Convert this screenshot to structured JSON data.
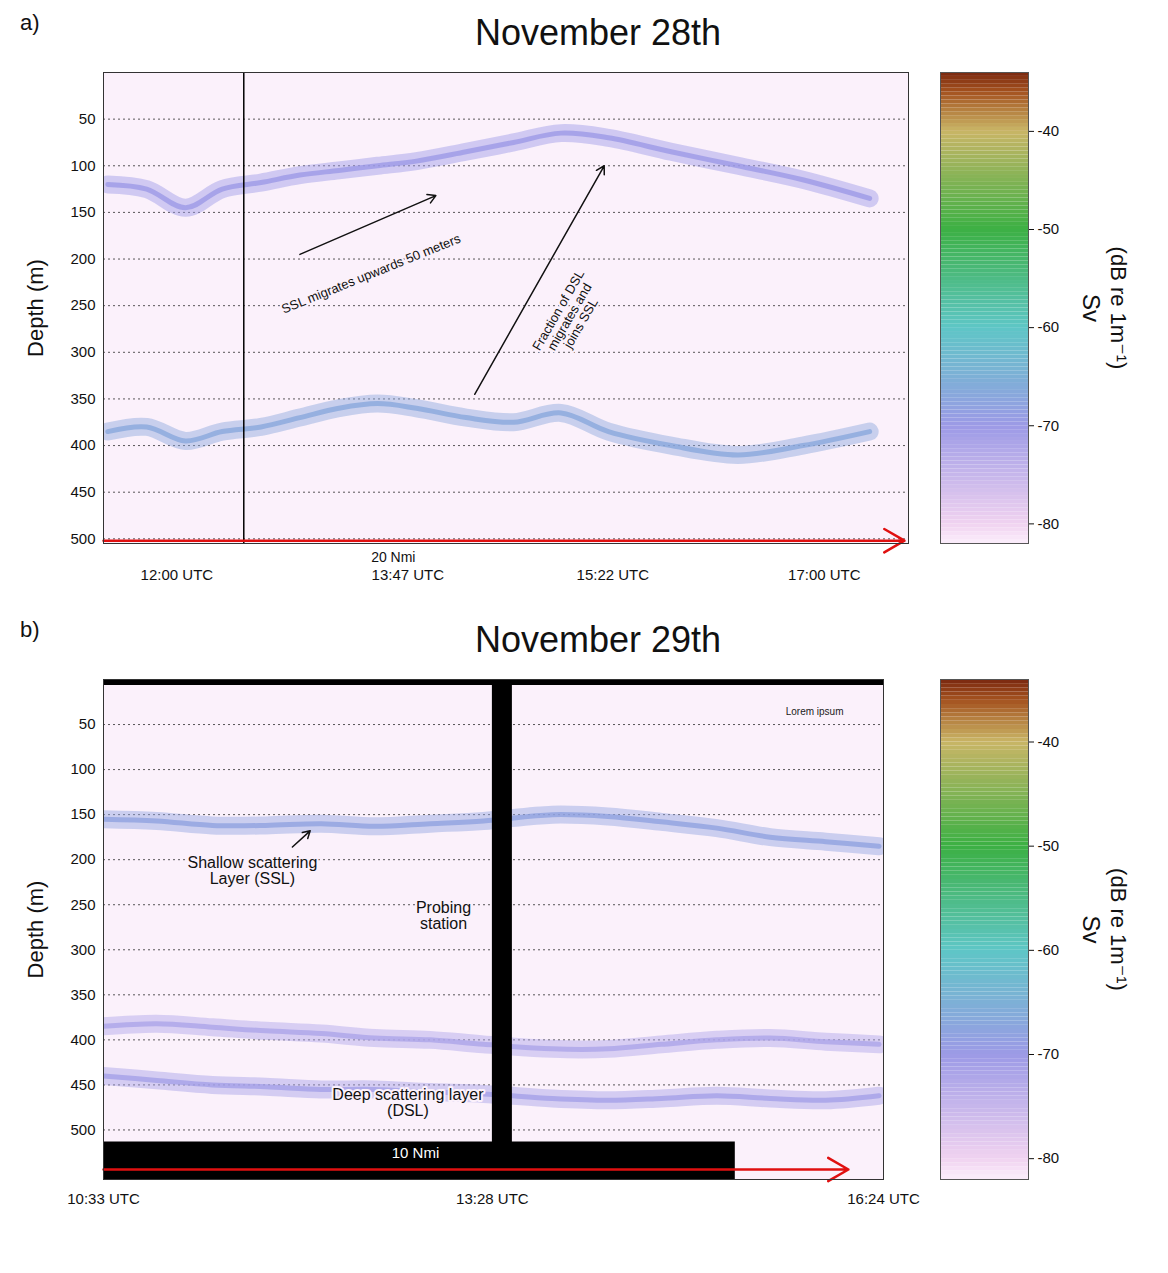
{
  "chart_data": [
    {
      "type": "echogram",
      "label": "a)",
      "title": "November 28th",
      "y_label": "Depth (m)",
      "ylim": [
        0,
        505
      ],
      "yticks": [
        50,
        100,
        150,
        200,
        250,
        300,
        350,
        400,
        450,
        500
      ],
      "grid": true,
      "xlim": [
        686,
        1059
      ],
      "xticks": [
        {
          "value": 720,
          "label": "12:00 UTC"
        },
        {
          "value": 827,
          "label": "13:47 UTC"
        },
        {
          "value": 922,
          "label": "15:22 UTC"
        },
        {
          "value": 1020,
          "label": "17:00 UTC"
        }
      ],
      "x": [
        688,
        706,
        724,
        741,
        759,
        777,
        795,
        813,
        831,
        854,
        876,
        898,
        920,
        949,
        980,
        1010,
        1041
      ],
      "series": [
        {
          "sv": -70,
          "values": [
            120,
            125,
            145,
            125,
            118,
            110,
            105,
            100,
            95,
            85,
            75,
            65,
            70,
            85,
            100,
            115,
            135
          ]
        },
        {
          "sv": -67,
          "values": [
            385,
            380,
            395,
            385,
            380,
            370,
            360,
            355,
            360,
            370,
            375,
            365,
            385,
            400,
            410,
            400,
            385
          ]
        }
      ],
      "events": [
        {
          "x": 751
        }
      ],
      "annotations": [
        "SSL migrates upwards 50 meters",
        "Fraction of DSL migrates and joins SSL"
      ],
      "scale_bar": "20 Nmi",
      "colorbar": {
        "label": "Sv",
        "units": "(dB re 1m⁻¹)",
        "range": [
          -82,
          -34
        ],
        "ticks": [
          -40,
          -50,
          -60,
          -70,
          -80
        ],
        "stops": [
          -82,
          -80,
          -70,
          -60,
          -50,
          -40,
          -36,
          -34
        ],
        "colors": [
          "#fbeefb",
          "#f0d2f0",
          "#9c9ae6",
          "#5ec6c6",
          "#3cb043",
          "#c9b566",
          "#a4521f",
          "#7a2810"
        ]
      }
    },
    {
      "type": "echogram",
      "label": "b)",
      "title": "November 29th",
      "y_label": "Depth (m)",
      "ylim": [
        0,
        555
      ],
      "yticks": [
        50,
        100,
        150,
        200,
        250,
        300,
        350,
        400,
        450,
        500
      ],
      "grid": true,
      "xlim": [
        633,
        984
      ],
      "xticks": [
        {
          "value": 633,
          "label": "10:33 UTC"
        },
        {
          "value": 808,
          "label": "13:28 UTC"
        },
        {
          "value": 984,
          "label": "16:24 UTC"
        }
      ],
      "x": [
        633,
        657,
        682,
        706,
        731,
        755,
        780,
        804,
        835,
        860,
        884,
        909,
        933,
        958,
        982
      ],
      "series": [
        {
          "sv": -68,
          "values": [
            155,
            157,
            162,
            162,
            160,
            163,
            160,
            157,
            150,
            152,
            158,
            165,
            175,
            180,
            185
          ]
        },
        {
          "sv": -72,
          "values": [
            385,
            382,
            386,
            390,
            393,
            398,
            400,
            405,
            410,
            410,
            405,
            400,
            398,
            402,
            405
          ]
        },
        {
          "sv": -71,
          "values": [
            440,
            445,
            450,
            452,
            455,
            455,
            458,
            460,
            465,
            467,
            465,
            462,
            465,
            467,
            462
          ]
        }
      ],
      "events": [
        {
          "x1": 808,
          "x2": 817
        }
      ],
      "annotations": [
        "Shallow scattering Layer (SSL)",
        "Probing station",
        "Deep scattering layer (DSL)",
        "Lorem ipsum"
      ],
      "scale_bar": "10 Nmi",
      "colorbar": {
        "label": "Sv",
        "units": "(dB re 1m⁻¹)",
        "range": [
          -82,
          -34
        ],
        "ticks": [
          -40,
          -50,
          -60,
          -70,
          -80
        ],
        "stops": [
          -82,
          -80,
          -70,
          -60,
          -50,
          -40,
          -36,
          -34
        ],
        "colors": [
          "#fbeefb",
          "#f0d2f0",
          "#9c9ae6",
          "#5ec6c6",
          "#3cb043",
          "#c9b566",
          "#a4521f",
          "#7a2810"
        ]
      }
    }
  ]
}
